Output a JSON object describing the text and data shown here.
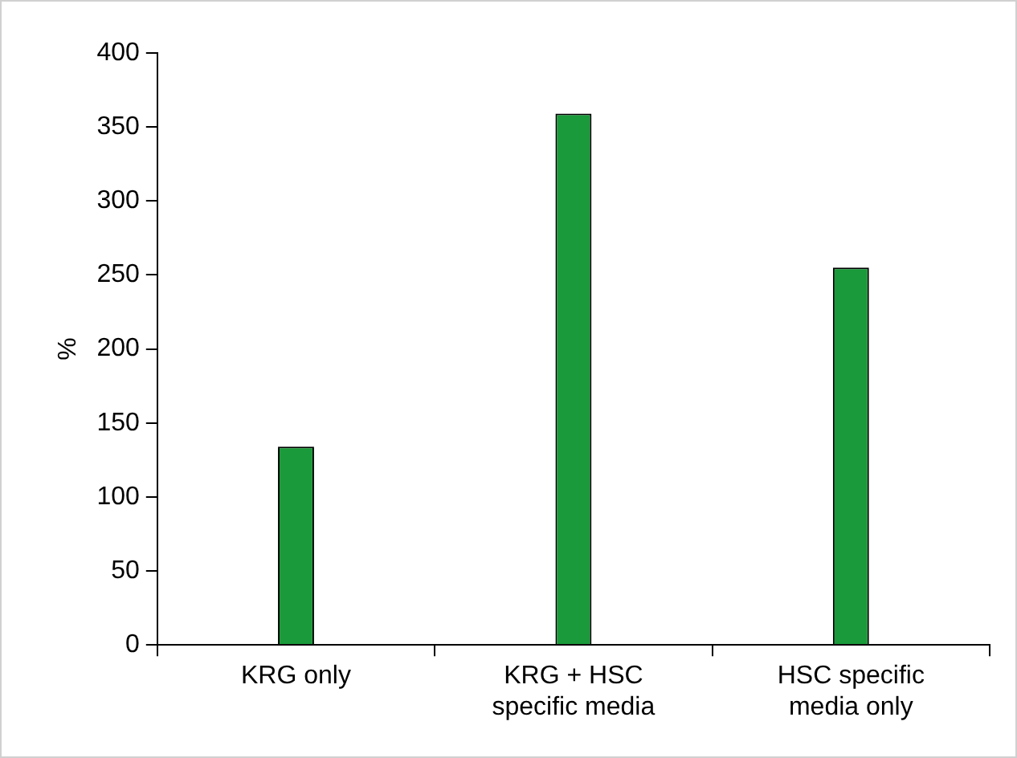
{
  "chart_data": {
    "type": "bar",
    "ylabel": "%",
    "categories": [
      "KRG only",
      "KRG + HSC specific media",
      "HSC specific media only"
    ],
    "values": [
      134,
      359,
      255
    ],
    "color": "#1a9a3a",
    "ylim": [
      0,
      400
    ],
    "yticks": [
      0,
      50,
      100,
      150,
      200,
      250,
      300,
      350,
      400
    ],
    "grid": false,
    "legend": false
  }
}
